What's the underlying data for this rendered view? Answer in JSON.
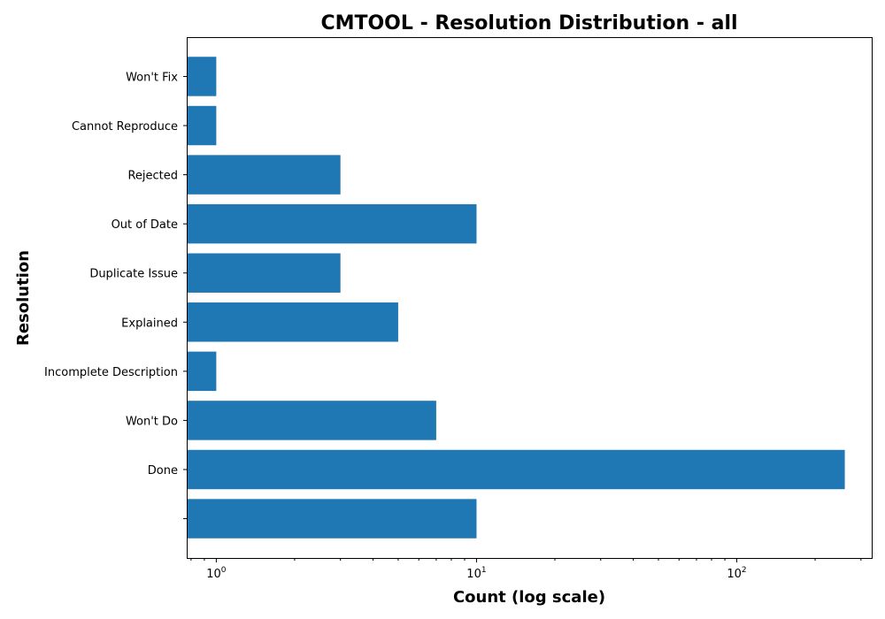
{
  "chart_data": {
    "type": "bar",
    "orientation": "horizontal",
    "title": "CMTOOL - Resolution Distribution - all",
    "xlabel": "Count (log scale)",
    "ylabel": "Resolution",
    "xscale": "log",
    "xlim": [
      0.77,
      330
    ],
    "x_ticks": [
      {
        "value": 1,
        "base": "10",
        "exp": "0"
      },
      {
        "value": 10,
        "base": "10",
        "exp": "1"
      },
      {
        "value": 100,
        "base": "10",
        "exp": "2"
      }
    ],
    "categories": [
      "",
      "Done",
      "Won't Do",
      "Incomplete Description",
      "Explained",
      "Duplicate Issue",
      "Out of Date",
      "Rejected",
      "Cannot Reproduce",
      "Won't Fix"
    ],
    "values": [
      10,
      260,
      7,
      1,
      5,
      3,
      10,
      3,
      1,
      1
    ],
    "bar_color": "#1f77b4",
    "grid": false,
    "legend": "none"
  }
}
